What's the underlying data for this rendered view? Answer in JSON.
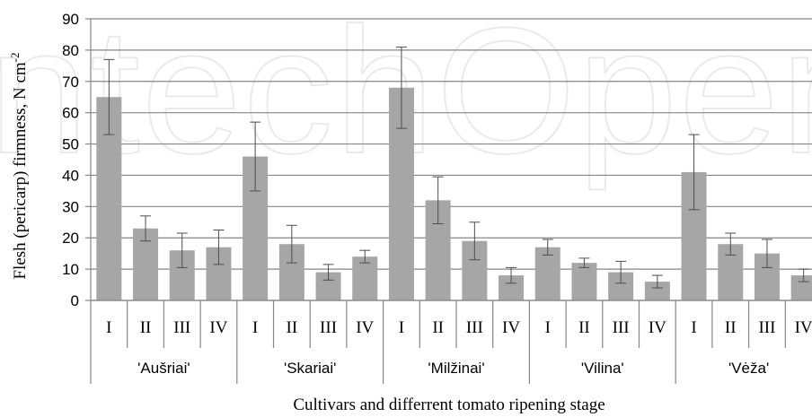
{
  "chart_data": {
    "type": "bar",
    "xlabel": "Cultivars and differrent tomato ripening stage",
    "ylabel": "Flesh (pericarp) firmness, N cm",
    "ylabel_superscript": "-2",
    "ylim": [
      0,
      90
    ],
    "yticks": [
      0,
      10,
      20,
      30,
      40,
      50,
      60,
      70,
      80,
      90
    ],
    "grid": true,
    "colors": {
      "bar": "#a6a6a6",
      "grid": "#868686",
      "axis": "#868686"
    },
    "groups": [
      {
        "cultivar": "'Aušriai'",
        "stages": [
          "I",
          "II",
          "III",
          "IV"
        ],
        "values": [
          65,
          23,
          16,
          17
        ],
        "errors": [
          12,
          4,
          5.5,
          5.5
        ]
      },
      {
        "cultivar": "'Skariai'",
        "stages": [
          "I",
          "II",
          "III",
          "IV"
        ],
        "values": [
          46,
          18,
          9,
          14
        ],
        "errors": [
          11,
          6,
          2.5,
          2
        ]
      },
      {
        "cultivar": "'Milžinai'",
        "stages": [
          "I",
          "II",
          "III",
          "IV"
        ],
        "values": [
          68,
          32,
          19,
          8
        ],
        "errors": [
          13,
          7.5,
          6,
          2.5
        ]
      },
      {
        "cultivar": "'Vilina'",
        "stages": [
          "I",
          "II",
          "III",
          "IV"
        ],
        "values": [
          17,
          12,
          9,
          6
        ],
        "errors": [
          2.5,
          1.5,
          3.5,
          2
        ]
      },
      {
        "cultivar": "'Vėža'",
        "stages": [
          "I",
          "II",
          "III",
          "IV"
        ],
        "values": [
          41,
          18,
          15,
          8
        ],
        "errors": [
          12,
          3.5,
          4.5,
          2
        ]
      }
    ]
  },
  "watermark": "IntechOpen"
}
